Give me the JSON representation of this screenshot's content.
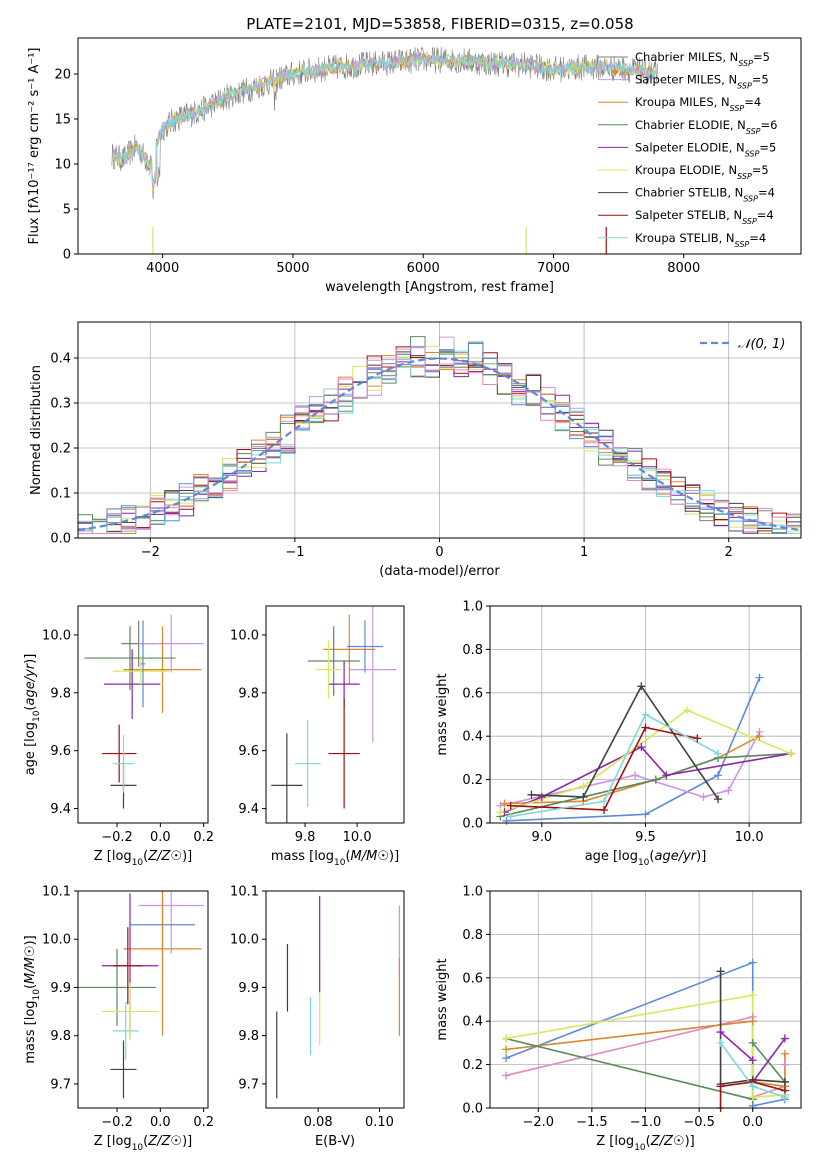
{
  "figure": {
    "title": "PLATE=2101, MJD=53858, FIBERID=0315, z=0.058"
  },
  "series_styles": [
    {
      "name": "Chabrier MILES",
      "nssp": "5",
      "color": "#7f7f7f"
    },
    {
      "name": "Salpeter MILES",
      "nssp": "5",
      "color": "#c994e8"
    },
    {
      "name": "Kroupa MILES",
      "nssp": "4",
      "color": "#d9882e"
    },
    {
      "name": "Chabrier ELODIE",
      "nssp": "6",
      "color": "#5a8a5a"
    },
    {
      "name": "Salpeter ELODIE",
      "nssp": "5",
      "color": "#8e24aa"
    },
    {
      "name": "Kroupa ELODIE",
      "nssp": "5",
      "color": "#d8e85c"
    },
    {
      "name": "Chabrier STELIB",
      "nssp": "4",
      "color": "#404040"
    },
    {
      "name": "Salpeter STELIB",
      "nssp": "4",
      "color": "#a01010"
    },
    {
      "name": "Kroupa STELIB",
      "nssp": "4",
      "color": "#7fd8d8"
    }
  ],
  "chart_data": [
    {
      "id": "spectrum",
      "type": "line",
      "xlabel": "wavelength [Angstrom, rest frame]",
      "ylabel": "Flux [fλ10⁻¹⁷ erg cm⁻² s⁻¹ A⁻¹]",
      "xlim": [
        3350,
        8900
      ],
      "ylim": [
        0,
        24
      ],
      "xticks": [
        4000,
        5000,
        6000,
        7000,
        8000
      ],
      "yticks": [
        0,
        5,
        10,
        15,
        20
      ],
      "legend": "right",
      "data_color": "#7f7f7f",
      "model_color": "#7fd8d8",
      "continuum": {
        "x": [
          3600,
          3700,
          3800,
          3900,
          4000,
          4100,
          4300,
          4500,
          4800,
          5000,
          5200,
          5500,
          5800,
          6000,
          6300,
          6500,
          6800,
          7000,
          7300,
          7600,
          7800
        ],
        "y": [
          11,
          10.5,
          12,
          10,
          14,
          15,
          16,
          17.5,
          19,
          20,
          20.5,
          21,
          21.3,
          21.6,
          21.5,
          21.2,
          21,
          20.5,
          20.8,
          20.5,
          20
        ]
      }
    },
    {
      "id": "residuals",
      "type": "histogram",
      "xlabel": "(data-model)/error",
      "ylabel": "Normed distribution",
      "xlim": [
        -2.5,
        2.5
      ],
      "ylim": [
        0,
        0.48
      ],
      "xticks": [
        -2,
        -1,
        0,
        1,
        2
      ],
      "xticklabels": [
        "−2",
        "−1",
        "0",
        "1",
        "2"
      ],
      "yticks": [
        0.0,
        0.1,
        0.2,
        0.3,
        0.4
      ],
      "yticklabels": [
        "0.0",
        "0.1",
        "0.2",
        "0.3",
        "0.4"
      ],
      "grid": true,
      "legend_label": "𝒩(0, 1)",
      "legend": "top-right",
      "normal_color": "#5b8bd8"
    },
    {
      "id": "age-vs-Z",
      "type": "errorbar",
      "xlabel": "Z [log10(Z/Z☉)]",
      "ylabel": "age  [log10(age/yr)]",
      "xlim": [
        -0.38,
        0.22
      ],
      "ylim": [
        9.35,
        10.1
      ],
      "xticks": [
        -0.2,
        0.0,
        0.2
      ],
      "xticklabels": [
        "−0.2",
        "0.0",
        "0.2"
      ],
      "yticks": [
        9.4,
        9.6,
        9.8,
        10.0
      ],
      "yticklabels": [
        "9.4",
        "9.6",
        "9.8",
        "10.0"
      ],
      "points": [
        {
          "s": 0,
          "x": -0.1,
          "y": 9.97,
          "xe": 0.08,
          "ye": 0.08
        },
        {
          "s": 1,
          "x": 0.05,
          "y": 9.97,
          "xe": 0.15,
          "ye": 0.1
        },
        {
          "s": 2,
          "x": 0.01,
          "y": 9.88,
          "xe": 0.18,
          "ye": 0.15
        },
        {
          "s": 3,
          "x": -0.14,
          "y": 9.92,
          "xe": 0.21,
          "ye": 0.11
        },
        {
          "s": 4,
          "x": -0.13,
          "y": 9.83,
          "xe": 0.13,
          "ye": 0.12
        },
        {
          "s": 5,
          "x": -0.09,
          "y": 9.875,
          "xe": 0.13,
          "ye": 0.05
        },
        {
          "s": 6,
          "x": -0.17,
          "y": 9.48,
          "xe": 0.06,
          "ye": 0.08
        },
        {
          "s": 7,
          "x": -0.19,
          "y": 9.59,
          "xe": 0.08,
          "ye": 0.1
        },
        {
          "s": 8,
          "x": -0.17,
          "y": 9.555,
          "xe": 0.05,
          "ye": 0.1
        },
        {
          "s": 9,
          "x": -0.08,
          "y": 9.9,
          "xe": 0.01,
          "ye": 0.15,
          "color": "#5b8bd8"
        }
      ]
    },
    {
      "id": "age-vs-mass",
      "type": "errorbar",
      "xlabel": "mass [log10(M/M☉)]",
      "ylabel": "",
      "xlim": [
        9.65,
        10.18
      ],
      "ylim": [
        9.35,
        10.1
      ],
      "xticks": [
        9.8,
        10.0
      ],
      "xticklabels": [
        "9.8",
        "10.0"
      ],
      "yticks": [
        9.4,
        9.6,
        9.8,
        10.0
      ],
      "yticklabels": [
        "9.4",
        "9.6",
        "9.8",
        "10.0"
      ],
      "points": [
        {
          "s": 1,
          "x": 10.06,
          "y": 9.88,
          "xe": 0.09,
          "ye": 0.25
        },
        {
          "s": 2,
          "x": 9.97,
          "y": 9.95,
          "xe": 0.1,
          "ye": 0.12
        },
        {
          "s": 3,
          "x": 9.91,
          "y": 9.91,
          "xe": 0.1,
          "ye": 0.12
        },
        {
          "s": 4,
          "x": 9.95,
          "y": 9.83,
          "xe": 0.06,
          "ye": 0.08
        },
        {
          "s": 5,
          "x": 9.89,
          "y": 9.88,
          "xe": 0.05,
          "ye": 0.1
        },
        {
          "s": 6,
          "x": 9.73,
          "y": 9.48,
          "xe": 0.06,
          "ye": 0.18
        },
        {
          "s": 7,
          "x": 9.95,
          "y": 9.59,
          "xe": 0.06,
          "ye": 0.19
        },
        {
          "s": 8,
          "x": 9.81,
          "y": 9.555,
          "xe": 0.05,
          "ye": 0.15
        },
        {
          "s": 0,
          "x": 10.03,
          "y": 9.96,
          "xe": 0.07,
          "ye": 0.09,
          "color": "#5b8bd8"
        }
      ]
    },
    {
      "id": "weight-vs-age",
      "type": "line",
      "xlabel": "age  [log10(age/yr)]",
      "ylabel": "mass weight",
      "xlim": [
        8.75,
        10.25
      ],
      "ylim": [
        0,
        1
      ],
      "xticks": [
        9.0,
        9.5,
        10.0
      ],
      "xticklabels": [
        "9.0",
        "9.5",
        "10.0"
      ],
      "yticks": [
        0.0,
        0.2,
        0.4,
        0.6,
        0.8,
        1.0
      ],
      "yticklabels": [
        "0.0",
        "0.2",
        "0.4",
        "0.6",
        "0.8",
        "1.0"
      ],
      "grid": true,
      "lines": [
        {
          "s": 0,
          "x": [
            8.83,
            9.5,
            9.85,
            10.05
          ],
          "y": [
            0.01,
            0.04,
            0.22,
            0.67
          ],
          "color": "#5b8bd8"
        },
        {
          "s": 1,
          "x": [
            8.8,
            9.45,
            9.78,
            9.9,
            10.05
          ],
          "y": [
            0.08,
            0.22,
            0.12,
            0.15,
            0.42
          ]
        },
        {
          "s": 2,
          "x": [
            8.82,
            9.2,
            9.55,
            9.85,
            10.05
          ],
          "y": [
            0.09,
            0.1,
            0.2,
            0.3,
            0.4
          ]
        },
        {
          "s": 3,
          "x": [
            8.8,
            9.2,
            9.55,
            9.85,
            10.2
          ],
          "y": [
            0.03,
            0.12,
            0.2,
            0.3,
            0.32
          ]
        },
        {
          "s": 4,
          "x": [
            8.82,
            9.0,
            9.48,
            9.6,
            10.2
          ],
          "y": [
            0.05,
            0.12,
            0.35,
            0.22,
            0.32
          ]
        },
        {
          "s": 5,
          "x": [
            8.8,
            9.2,
            9.7,
            10.2
          ],
          "y": [
            0.05,
            0.17,
            0.52,
            0.32
          ]
        },
        {
          "s": 6,
          "x": [
            8.95,
            9.2,
            9.48,
            9.85
          ],
          "y": [
            0.13,
            0.12,
            0.63,
            0.11
          ]
        },
        {
          "s": 7,
          "x": [
            8.85,
            9.3,
            9.5,
            9.75
          ],
          "y": [
            0.08,
            0.06,
            0.44,
            0.39
          ]
        },
        {
          "s": 8,
          "x": [
            8.85,
            9.3,
            9.5,
            9.85
          ],
          "y": [
            0.03,
            0.1,
            0.5,
            0.32
          ]
        }
      ]
    },
    {
      "id": "mass-vs-Z",
      "type": "errorbar",
      "xlabel": "Z [log10(Z/Z☉)]",
      "ylabel": "mass [log10(M/M☉)]",
      "xlim": [
        -0.38,
        0.22
      ],
      "ylim": [
        9.65,
        10.1
      ],
      "xticks": [
        -0.2,
        0.0,
        0.2
      ],
      "xticklabels": [
        "−0.2",
        "0.0",
        "0.2"
      ],
      "yticks": [
        9.7,
        9.8,
        9.9,
        10.0,
        10.1
      ],
      "yticklabels": [
        "9.7",
        "9.8",
        "9.9",
        "10.0",
        "10.1"
      ],
      "points": [
        {
          "s": 1,
          "x": 0.05,
          "y": 10.07,
          "xe": 0.15,
          "ye": 0.1
        },
        {
          "s": 0,
          "x": 0.01,
          "y": 10.03,
          "xe": 0.15,
          "ye": 0.1,
          "color": "#5b8bd8"
        },
        {
          "s": 2,
          "x": 0.01,
          "y": 9.98,
          "xe": 0.18,
          "ye": 0.18
        },
        {
          "s": 3,
          "x": -0.2,
          "y": 9.9,
          "xe": 0.18,
          "ye": 0.08
        },
        {
          "s": 4,
          "x": -0.14,
          "y": 9.945,
          "xe": 0.13,
          "ye": 0.15
        },
        {
          "s": 5,
          "x": -0.14,
          "y": 9.85,
          "xe": 0.13,
          "ye": 0.06
        },
        {
          "s": 6,
          "x": -0.17,
          "y": 9.73,
          "xe": 0.06,
          "ye": 0.06
        },
        {
          "s": 7,
          "x": -0.15,
          "y": 9.945,
          "xe": 0.07,
          "ye": 0.08
        },
        {
          "s": 8,
          "x": -0.16,
          "y": 9.81,
          "xe": 0.06,
          "ye": 0.06
        }
      ]
    },
    {
      "id": "mass-vs-EBV",
      "type": "errorbar",
      "xlabel": "E(B-V)",
      "ylabel": "",
      "xlim": [
        0.063,
        0.108
      ],
      "ylim": [
        9.65,
        10.1
      ],
      "xticks": [
        0.08,
        0.1
      ],
      "xticklabels": [
        "0.08",
        "0.10"
      ],
      "yticks": [
        9.7,
        9.8,
        9.9,
        10.0,
        10.1
      ],
      "yticklabels": [
        "9.7",
        "9.8",
        "9.9",
        "10.0",
        "10.1"
      ],
      "points": [
        {
          "s": 6,
          "x": 0.0665,
          "y": 9.76,
          "xe": 0,
          "ye": 0.09
        },
        {
          "s": 7,
          "x": 0.07,
          "y": 9.92,
          "xe": 0,
          "ye": 0.07
        },
        {
          "s": 8,
          "x": 0.0775,
          "y": 9.82,
          "xe": 0,
          "ye": 0.06
        },
        {
          "s": 5,
          "x": 0.0805,
          "y": 9.87,
          "xe": 0,
          "ye": 0.09
        },
        {
          "s": 4,
          "x": 0.0805,
          "y": 9.99,
          "xe": 0,
          "ye": 0.1
        },
        {
          "s": 1,
          "x": 0.1065,
          "y": 10.0,
          "xe": 0,
          "ye": 0.07
        },
        {
          "s": 2,
          "x": 0.1065,
          "y": 9.88,
          "xe": 0,
          "ye": 0.08
        }
      ]
    },
    {
      "id": "weight-vs-Z",
      "type": "line",
      "xlabel": "Z [log10(Z/Z☉)]",
      "ylabel": "mass weight",
      "xlim": [
        -2.45,
        0.45
      ],
      "ylim": [
        0,
        1
      ],
      "xticks": [
        -2.0,
        -1.5,
        -1.0,
        -0.5,
        0.0
      ],
      "xticklabels": [
        "−2.0",
        "−1.5",
        "−1.0",
        "−0.5",
        "0.0"
      ],
      "yticks": [
        0.0,
        0.2,
        0.4,
        0.6,
        0.8,
        1.0
      ],
      "yticklabels": [
        "0.0",
        "0.2",
        "0.4",
        "0.6",
        "0.8",
        "1.0"
      ],
      "grid": true,
      "lines": [
        {
          "s": 0,
          "x": [
            -2.3,
            0.0,
            0.0,
            0.3,
            0.3
          ],
          "y": [
            0.23,
            0.67,
            0.01,
            0.04,
            0.1
          ],
          "color": "#5b8bd8"
        },
        {
          "s": 1,
          "x": [
            -2.3,
            0.0,
            0.0,
            0.3,
            0.3
          ],
          "y": [
            0.15,
            0.42,
            0.05,
            0.1,
            0.2
          ],
          "color": "#e08ac0"
        },
        {
          "s": 2,
          "x": [
            -2.3,
            0.0,
            0.0,
            0.3,
            0.3
          ],
          "y": [
            0.27,
            0.4,
            0.12,
            0.1,
            0.25
          ]
        },
        {
          "s": 3,
          "x": [
            -2.3,
            0.0,
            0.0,
            0.3,
            0.3
          ],
          "y": [
            0.32,
            0.04,
            0.3,
            0.12,
            0.06
          ]
        },
        {
          "s": 4,
          "x": [
            -0.3,
            0.0,
            0.0,
            0.3
          ],
          "y": [
            0.35,
            0.22,
            0.12,
            0.32
          ]
        },
        {
          "s": 5,
          "x": [
            -2.3,
            0.0,
            0.0,
            0.3
          ],
          "y": [
            0.32,
            0.52,
            0.05,
            0.06
          ]
        },
        {
          "s": 6,
          "x": [
            -0.3,
            -0.3,
            0.0,
            0.3
          ],
          "y": [
            0.63,
            0.11,
            0.13,
            0.12
          ]
        },
        {
          "s": 7,
          "x": [
            -0.3,
            -0.3,
            0.0,
            0.3
          ],
          "y": [
            0.0,
            0.1,
            0.12,
            0.08
          ]
        },
        {
          "s": 8,
          "x": [
            -0.3,
            0.0,
            0.0,
            0.3
          ],
          "y": [
            0.3,
            0.1,
            0.1,
            0.05
          ]
        }
      ]
    }
  ]
}
